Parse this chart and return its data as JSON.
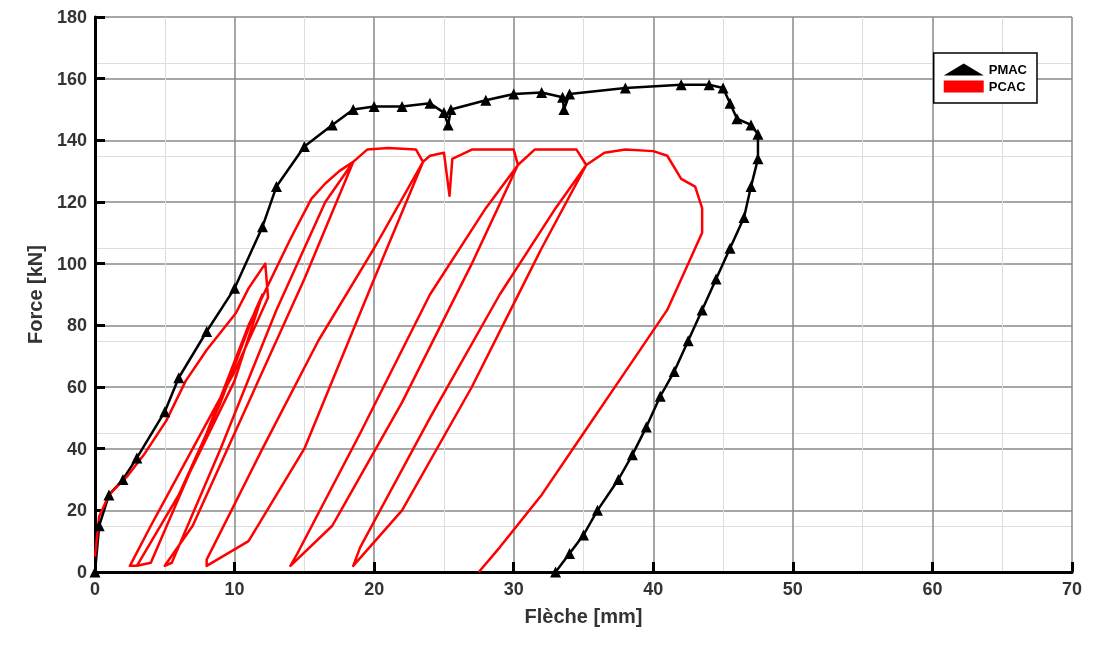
{
  "chart_data": {
    "type": "line",
    "xlabel": "Flèche [mm]",
    "ylabel": "Force [kN]",
    "xlim": [
      0,
      70
    ],
    "xticks": [
      0,
      10,
      20,
      30,
      40,
      50,
      60,
      70
    ],
    "ylim": [
      0,
      180
    ],
    "yticks": [
      0,
      20,
      40,
      60,
      80,
      100,
      120,
      140,
      160,
      180
    ],
    "grid": true,
    "legend": "top right",
    "series": [
      {
        "name": "PMAC",
        "color": "#000000",
        "marker": "triangle",
        "x": [
          0,
          0.3,
          1,
          2,
          3,
          5,
          6,
          8,
          10,
          12,
          13,
          15,
          17,
          18.5,
          20,
          22,
          24,
          25,
          25.3,
          25.5,
          28,
          30,
          32,
          33.5,
          33.6,
          34,
          38,
          42,
          44,
          45,
          45.5,
          46,
          47,
          47.5,
          47.5,
          47,
          46.5,
          45.5,
          44.5,
          43.5,
          42.5,
          41.5,
          40.5,
          39.5,
          38.5,
          37.5,
          36,
          35,
          34,
          33
        ],
        "values": [
          0,
          15,
          25,
          30,
          37,
          52,
          63,
          78,
          92,
          112,
          125,
          138,
          145,
          150,
          151,
          151,
          152,
          149,
          145,
          150,
          153,
          155,
          155.5,
          154,
          150,
          155,
          157,
          158,
          158,
          157,
          152,
          147,
          145,
          142,
          134,
          125,
          115,
          105,
          95,
          85,
          75,
          65,
          57,
          47,
          38,
          30,
          20,
          12,
          6,
          0
        ]
      },
      {
        "name": "PCAC",
        "color": "#ff0000",
        "marker": "none",
        "x": [
          0,
          0.3,
          1,
          2.3,
          3.5,
          5.1,
          6.5,
          8,
          10.1,
          11,
          12.2,
          12.4,
          10,
          7,
          4,
          2.5,
          3,
          6,
          9,
          11.5,
          12,
          10,
          6,
          3,
          4,
          8,
          11,
          14,
          15.5,
          16.5,
          17.5,
          18.5,
          15,
          11,
          7,
          5,
          5.5,
          9,
          13,
          16.5,
          18.5,
          19.5,
          21,
          23,
          23.5,
          20,
          15,
          11,
          8,
          8,
          12,
          16,
          20,
          23.5,
          24,
          25,
          25.4,
          25.6,
          27,
          30,
          30.3,
          27,
          22,
          17,
          14,
          14.5,
          19,
          24,
          28,
          30.3,
          31.5,
          34.5,
          35.2,
          32,
          27,
          22,
          18.5,
          19,
          24,
          29,
          33,
          35.2,
          36.5,
          38,
          40,
          41,
          42,
          43,
          43.5,
          43.5,
          42.5,
          41,
          38,
          35,
          32,
          29,
          27.5
        ],
        "values": [
          5,
          18,
          25,
          31,
          38,
          49,
          62,
          72,
          84,
          92,
          100,
          89,
          65,
          40,
          15,
          2,
          2,
          25,
          55,
          85,
          90,
          62,
          25,
          2,
          3,
          45,
          80,
          108,
          121,
          126,
          130,
          133,
          95,
          55,
          15,
          2,
          3,
          40,
          85,
          120,
          133,
          137,
          137.5,
          137,
          133,
          95,
          40,
          10,
          2,
          4,
          40,
          75,
          105,
          133,
          135,
          136,
          122,
          134,
          137,
          137,
          132,
          100,
          55,
          15,
          2,
          6,
          45,
          90,
          118,
          132,
          137,
          137,
          132,
          105,
          60,
          20,
          2,
          8,
          50,
          90,
          118,
          132,
          136,
          137,
          136.5,
          135,
          127.5,
          125,
          118,
          110,
          100,
          85,
          65,
          45,
          25,
          8,
          0
        ]
      }
    ]
  }
}
